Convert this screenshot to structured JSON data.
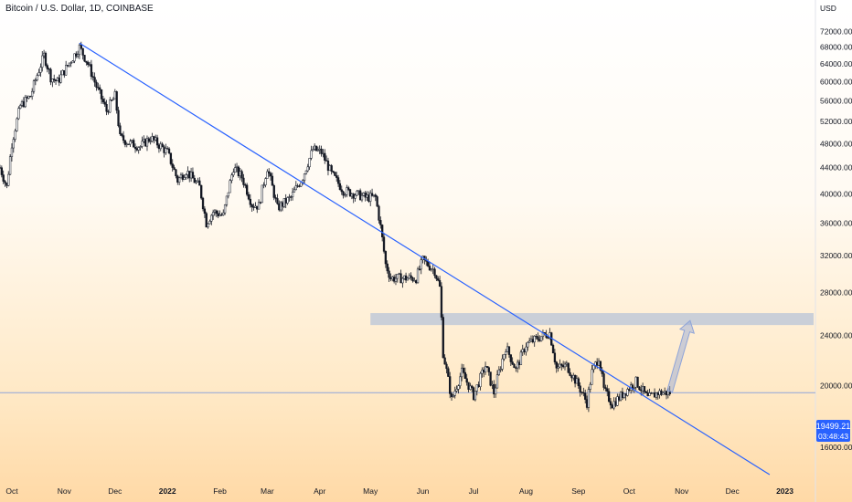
{
  "header": {
    "title": "Bitcoin / U.S. Dollar, 1D, COINBASE",
    "currency": "USD"
  },
  "price_tag": {
    "price": "19499.21",
    "countdown": "03:48:43"
  },
  "colors": {
    "candle": "#131722",
    "trendline": "#2962ff",
    "zone": "#b8c4d8",
    "price_line": "#8fa4d8",
    "price_tag": "#2962ff",
    "arrow": "#8fa4d8"
  },
  "chart_data": {
    "type": "candlestick",
    "y_scale": "log",
    "ylim": [
      14500,
      76000
    ],
    "y_ticks": [
      16000,
      20000,
      24000,
      28000,
      32000,
      36000,
      40000,
      44000,
      48000,
      52000,
      56000,
      60000,
      64000,
      68000,
      72000
    ],
    "y_tick_labels": [
      "16000.00",
      "20000.00",
      "24000.00",
      "28000.00",
      "32000.00",
      "36000.00",
      "40000.00",
      "44000.00",
      "48000.00",
      "52000.00",
      "56000.00",
      "60000.00",
      "64000.00",
      "68000.00",
      "72000.00"
    ],
    "x_start": "2021-09-24",
    "x_end": "2023-01-18",
    "x_ticks": [
      {
        "date": "2021-10-01",
        "label": "Oct",
        "bold": false
      },
      {
        "date": "2021-11-01",
        "label": "Nov",
        "bold": false
      },
      {
        "date": "2021-12-01",
        "label": "Dec",
        "bold": false
      },
      {
        "date": "2022-01-01",
        "label": "2022",
        "bold": true
      },
      {
        "date": "2022-02-01",
        "label": "Feb",
        "bold": false
      },
      {
        "date": "2022-03-01",
        "label": "Mar",
        "bold": false
      },
      {
        "date": "2022-04-01",
        "label": "Apr",
        "bold": false
      },
      {
        "date": "2022-05-01",
        "label": "May",
        "bold": false
      },
      {
        "date": "2022-06-01",
        "label": "Jun",
        "bold": false
      },
      {
        "date": "2022-07-01",
        "label": "Jul",
        "bold": false
      },
      {
        "date": "2022-08-01",
        "label": "Aug",
        "bold": false
      },
      {
        "date": "2022-09-01",
        "label": "Sep",
        "bold": false
      },
      {
        "date": "2022-10-01",
        "label": "Oct",
        "bold": false
      },
      {
        "date": "2022-11-01",
        "label": "Nov",
        "bold": false
      },
      {
        "date": "2022-12-01",
        "label": "Dec",
        "bold": false
      },
      {
        "date": "2023-01-01",
        "label": "2023",
        "bold": true
      }
    ],
    "price_path": [
      [
        "2021-09-24",
        44000
      ],
      [
        "2021-09-28",
        41000
      ],
      [
        "2021-10-01",
        48000
      ],
      [
        "2021-10-06",
        55000
      ],
      [
        "2021-10-12",
        57000
      ],
      [
        "2021-10-20",
        66000
      ],
      [
        "2021-10-24",
        61000
      ],
      [
        "2021-10-28",
        60000
      ],
      [
        "2021-11-02",
        63000
      ],
      [
        "2021-11-10",
        68000
      ],
      [
        "2021-11-15",
        64000
      ],
      [
        "2021-11-20",
        59000
      ],
      [
        "2021-11-26",
        54000
      ],
      [
        "2021-12-01",
        57000
      ],
      [
        "2021-12-04",
        49000
      ],
      [
        "2021-12-10",
        48000
      ],
      [
        "2021-12-16",
        47500
      ],
      [
        "2021-12-22",
        49000
      ],
      [
        "2021-12-28",
        47500
      ],
      [
        "2022-01-01",
        46500
      ],
      [
        "2022-01-07",
        42000
      ],
      [
        "2022-01-12",
        43500
      ],
      [
        "2022-01-20",
        41000
      ],
      [
        "2022-01-24",
        36000
      ],
      [
        "2022-01-28",
        37500
      ],
      [
        "2022-02-03",
        37000
      ],
      [
        "2022-02-09",
        44000
      ],
      [
        "2022-02-14",
        42500
      ],
      [
        "2022-02-20",
        38500
      ],
      [
        "2022-02-24",
        38300
      ],
      [
        "2022-03-01",
        44000
      ],
      [
        "2022-03-07",
        38000
      ],
      [
        "2022-03-15",
        39500
      ],
      [
        "2022-03-22",
        42500
      ],
      [
        "2022-03-28",
        47000
      ],
      [
        "2022-04-02",
        46500
      ],
      [
        "2022-04-08",
        43000
      ],
      [
        "2022-04-15",
        40500
      ],
      [
        "2022-04-22",
        40000
      ],
      [
        "2022-04-28",
        39500
      ],
      [
        "2022-05-04",
        39500
      ],
      [
        "2022-05-07",
        35500
      ],
      [
        "2022-05-10",
        31000
      ],
      [
        "2022-05-13",
        29500
      ],
      [
        "2022-05-20",
        29500
      ],
      [
        "2022-05-28",
        29500
      ],
      [
        "2022-06-01",
        31500
      ],
      [
        "2022-06-08",
        30300
      ],
      [
        "2022-06-11",
        28500
      ],
      [
        "2022-06-13",
        22500
      ],
      [
        "2022-06-18",
        19000
      ],
      [
        "2022-06-24",
        21000
      ],
      [
        "2022-07-01",
        19300
      ],
      [
        "2022-07-08",
        21500
      ],
      [
        "2022-07-13",
        19500
      ],
      [
        "2022-07-20",
        23000
      ],
      [
        "2022-07-26",
        21200
      ],
      [
        "2022-08-01",
        23200
      ],
      [
        "2022-08-10",
        23900
      ],
      [
        "2022-08-15",
        24200
      ],
      [
        "2022-08-19",
        21300
      ],
      [
        "2022-08-25",
        21500
      ],
      [
        "2022-09-01",
        20000
      ],
      [
        "2022-09-06",
        18800
      ],
      [
        "2022-09-09",
        21000
      ],
      [
        "2022-09-13",
        22200
      ],
      [
        "2022-09-16",
        19700
      ],
      [
        "2022-09-21",
        18700
      ],
      [
        "2022-09-28",
        19500
      ],
      [
        "2022-10-05",
        20300
      ],
      [
        "2022-10-12",
        19100
      ],
      [
        "2022-10-18",
        19500
      ],
      [
        "2022-10-25",
        19499
      ]
    ],
    "trendline": {
      "start": [
        "2021-11-10",
        69000
      ],
      "end": [
        "2022-12-23",
        14500
      ]
    },
    "resistance_zone": {
      "start": "2022-05-01",
      "end": "2023-01-18",
      "low": 24900,
      "high": 26000
    },
    "current_price": 19499.21,
    "projection_arrow": {
      "from": [
        "2022-10-25",
        19600
      ],
      "to": [
        "2022-11-06",
        25300
      ]
    }
  }
}
